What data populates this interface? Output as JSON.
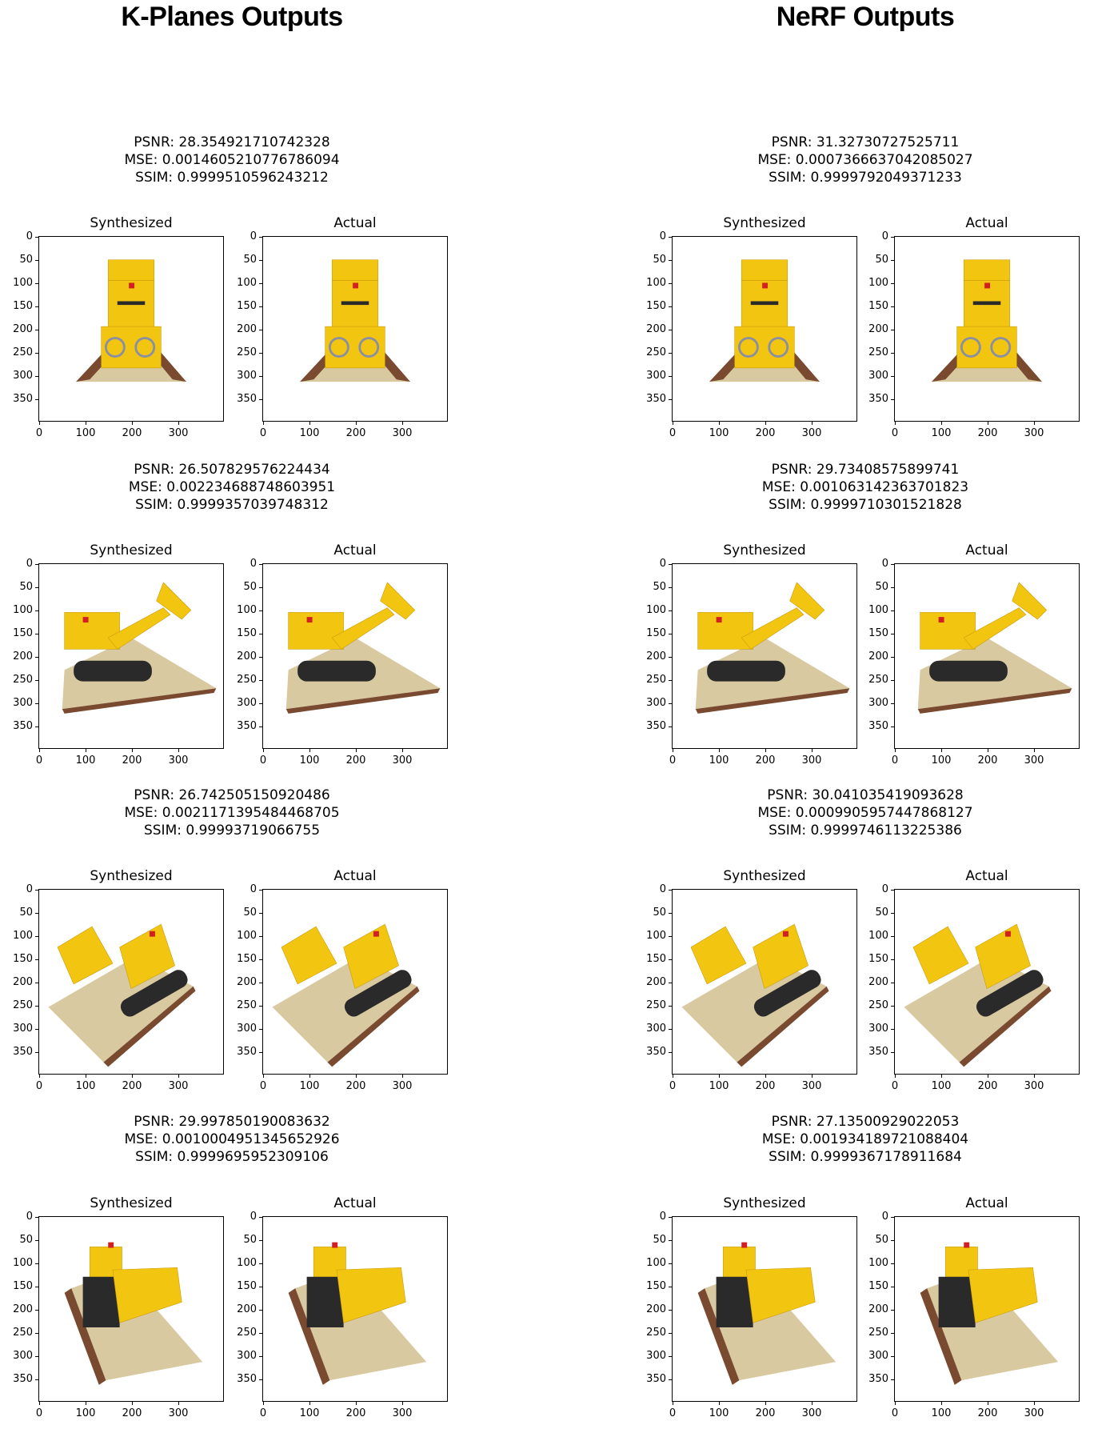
{
  "columns": [
    {
      "title": "K-Planes Outputs",
      "rows": [
        {
          "psnr": "PSNR: 28.354921710742328",
          "mse": "MSE: 0.0014605210776786094",
          "ssim": "SSIM: 0.9999510596243212",
          "view": "front"
        },
        {
          "psnr": "PSNR: 26.507829576224434",
          "mse": "MSE: 0.002234688748603951",
          "ssim": "SSIM: 0.9999357039748312",
          "view": "side"
        },
        {
          "psnr": "PSNR: 26.742505150920486",
          "mse": "MSE: 0.0021171395484468705",
          "ssim": "SSIM: 0.99993719066755",
          "view": "diag"
        },
        {
          "psnr": "PSNR: 29.997850190083632",
          "mse": "MSE: 0.0010004951345652926",
          "ssim": "SSIM: 0.9999695952309106",
          "view": "top"
        }
      ]
    },
    {
      "title": "NeRF Outputs",
      "rows": [
        {
          "psnr": "PSNR: 31.32730727525711",
          "mse": "MSE: 0.0007366637042085027",
          "ssim": "SSIM: 0.9999792049371233",
          "view": "front"
        },
        {
          "psnr": "PSNR: 29.73408575899741",
          "mse": "MSE: 0.001063142363701823",
          "ssim": "SSIM: 0.9999710301521828",
          "view": "side"
        },
        {
          "psnr": "PSNR: 30.041035419093628",
          "mse": "MSE: 0.0009905957447868127",
          "ssim": "SSIM: 0.9999746113225386",
          "view": "diag"
        },
        {
          "psnr": "PSNR: 27.13500929022053",
          "mse": "MSE: 0.001934189721088404",
          "ssim": "SSIM: 0.9999367178911684",
          "view": "top"
        }
      ]
    }
  ],
  "panel_titles": [
    "Synthesized",
    "Actual"
  ],
  "axis": {
    "xticks": [
      "0",
      "100",
      "200",
      "300"
    ],
    "yticks": [
      "0",
      "50",
      "100",
      "150",
      "200",
      "250",
      "300",
      "350"
    ]
  },
  "colors": {
    "yellow": "#f2c511",
    "dark_yellow": "#c79a0a",
    "base": "#d8c9a0",
    "brown": "#7a4a30",
    "track": "#2a2a2a",
    "axle": "#8a8fa3",
    "red": "#d21f1f"
  }
}
